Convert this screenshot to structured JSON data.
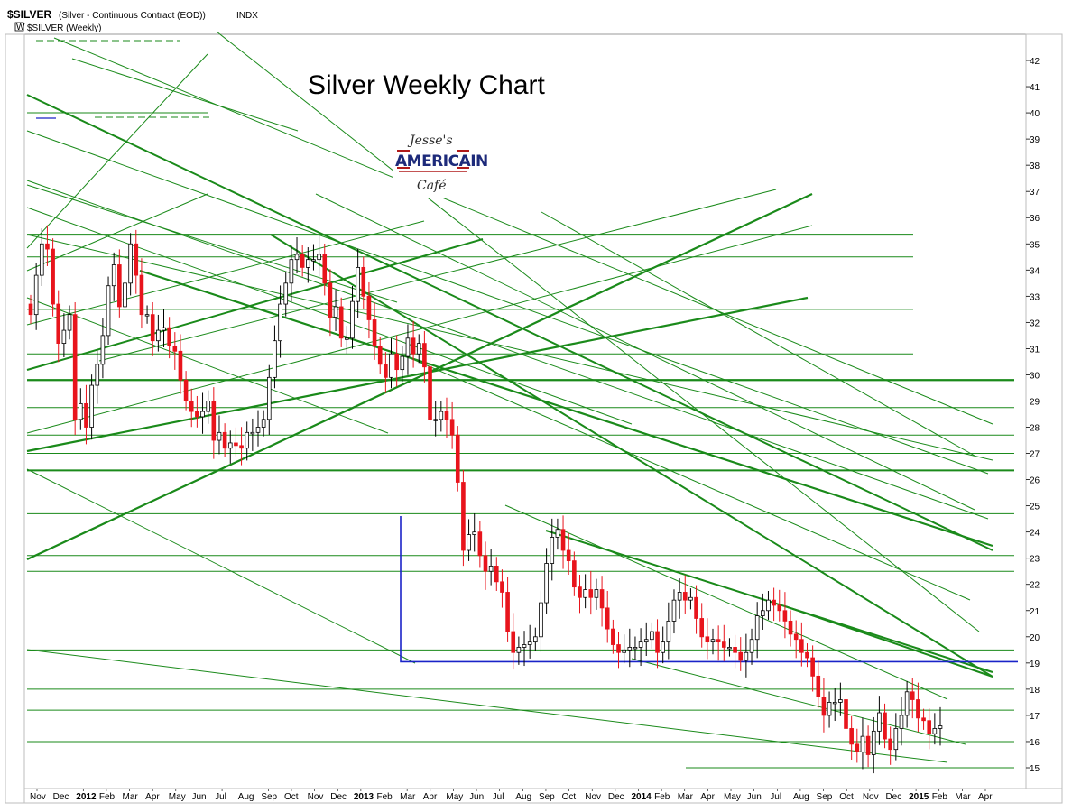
{
  "header": {
    "symbol": "$SILVER",
    "description": "(Silver - Continuous Contract (EOD))",
    "exchange": "INDX",
    "legend": "$SILVER (Weekly)",
    "legend_marker": "W"
  },
  "logo": {
    "line1": "Jesse's",
    "line2": "AMERICAIN",
    "line3": "Café"
  },
  "colors": {
    "up_candle": "#ffffff",
    "down_candle": "#e8141c",
    "candle_outline": "#000000",
    "trendline": "#1a8a1a",
    "support": "#1a23c8"
  },
  "chart_data": {
    "type": "candlestick",
    "title": "Silver Weekly Chart",
    "interval": "weekly",
    "y_axis": {
      "position": "right",
      "ylim": [
        14.4,
        43
      ],
      "ticks": [
        15,
        16,
        17,
        18,
        19,
        20,
        21,
        22,
        23,
        24,
        25,
        26,
        27,
        28,
        29,
        30,
        31,
        32,
        33,
        34,
        35,
        36,
        37,
        38,
        39,
        40,
        41,
        42
      ]
    },
    "x_axis": {
      "ticks": [
        "Nov",
        "Dec",
        "2012",
        "Feb",
        "Mar",
        "Apr",
        "May",
        "Jun",
        "Jul",
        "Aug",
        "Sep",
        "Oct",
        "Nov",
        "Dec",
        "2013",
        "Feb",
        "Mar",
        "Apr",
        "May",
        "Jun",
        "Jul",
        "Aug",
        "Sep",
        "Oct",
        "Nov",
        "Dec",
        "2014",
        "Feb",
        "Mar",
        "Apr",
        "May",
        "Jun",
        "Jul",
        "Aug",
        "Sep",
        "Oct",
        "Nov",
        "Dec",
        "2015",
        "Feb",
        "Mar",
        "Apr"
      ],
      "bold_ticks": [
        "2012",
        "2013",
        "2014",
        "2015"
      ]
    },
    "support_level": 19.05,
    "series": [
      {
        "name": "$SILVER (Weekly)",
        "close": [
          32.3,
          33.8,
          35.0,
          34.8,
          32.7,
          31.2,
          31.7,
          32.3,
          28.3,
          28.9,
          28.0,
          29.6,
          30.4,
          31.5,
          33.4,
          34.2,
          32.6,
          33.5,
          35.0,
          33.8,
          32.3,
          32.3,
          31.3,
          31.7,
          31.8,
          31.1,
          30.9,
          29.8,
          29.0,
          28.6,
          28.4,
          28.6,
          29.0,
          27.5,
          27.8,
          27.2,
          27.4,
          27.3,
          27.2,
          27.8,
          27.8,
          28.0,
          28.3,
          29.9,
          31.3,
          32.7,
          33.5,
          34.4,
          34.6,
          34.1,
          34.4,
          34.4,
          34.6,
          33.5,
          32.2,
          32.6,
          31.4,
          31.4,
          32.8,
          34.1,
          33.0,
          32.1,
          31.1,
          30.4,
          29.9,
          30.8,
          30.2,
          30.7,
          31.4,
          30.8,
          31.2,
          30.3,
          28.3,
          28.3,
          28.6,
          28.3,
          27.7,
          25.9,
          23.3,
          23.9,
          24.0,
          23.1,
          22.5,
          22.7,
          22.1,
          21.7,
          20.2,
          19.4,
          19.6,
          19.7,
          19.8,
          20.0,
          21.3,
          22.8,
          23.8,
          24.1,
          23.3,
          22.9,
          21.9,
          21.5,
          21.8,
          21.5,
          21.8,
          21.1,
          20.3,
          19.7,
          19.4,
          19.5,
          19.6,
          19.6,
          19.8,
          19.9,
          20.2,
          19.4,
          19.8,
          20.6,
          21.4,
          21.7,
          21.4,
          21.5,
          20.7,
          20.0,
          19.8,
          19.9,
          19.8,
          19.6,
          19.6,
          19.4,
          19.1,
          19.4,
          19.9,
          20.8,
          21.0,
          21.4,
          21.2,
          21.0,
          20.6,
          20.1,
          19.9,
          19.4,
          19.2,
          18.5,
          17.7,
          17.0,
          17.5,
          17.5,
          17.6,
          16.5,
          15.9,
          15.6,
          16.2,
          15.5,
          16.4,
          17.1,
          16.1,
          15.7,
          16.5,
          17.0,
          17.9,
          17.6,
          16.9,
          16.8,
          16.3,
          16.5,
          16.6
        ],
        "ohlc_note": "weekly OHLC estimated from the chart; every other week is shown here as close"
      }
    ]
  }
}
